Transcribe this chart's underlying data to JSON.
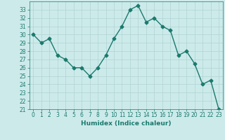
{
  "x": [
    0,
    1,
    2,
    3,
    4,
    5,
    6,
    7,
    8,
    9,
    10,
    11,
    12,
    13,
    14,
    15,
    16,
    17,
    18,
    19,
    20,
    21,
    22,
    23
  ],
  "y": [
    30,
    29,
    29.5,
    27.5,
    27,
    26,
    26,
    25,
    26,
    27.5,
    29.5,
    31,
    33,
    33.5,
    31.5,
    32,
    31,
    30.5,
    27.5,
    28,
    26.5,
    24,
    24.5,
    21
  ],
  "line_color": "#1a7a6e",
  "marker": "D",
  "markersize": 2.5,
  "bg_color": "#cdeaea",
  "grid_color": "#b0d4d4",
  "xlabel": "Humidex (Indice chaleur)",
  "xlim": [
    -0.5,
    23.5
  ],
  "ylim": [
    21,
    34
  ],
  "yticks": [
    21,
    22,
    23,
    24,
    25,
    26,
    27,
    28,
    29,
    30,
    31,
    32,
    33
  ],
  "xticks": [
    0,
    1,
    2,
    3,
    4,
    5,
    6,
    7,
    8,
    9,
    10,
    11,
    12,
    13,
    14,
    15,
    16,
    17,
    18,
    19,
    20,
    21,
    22,
    23
  ],
  "tick_fontsize": 5.5,
  "xlabel_fontsize": 6.5,
  "linewidth": 1.0
}
